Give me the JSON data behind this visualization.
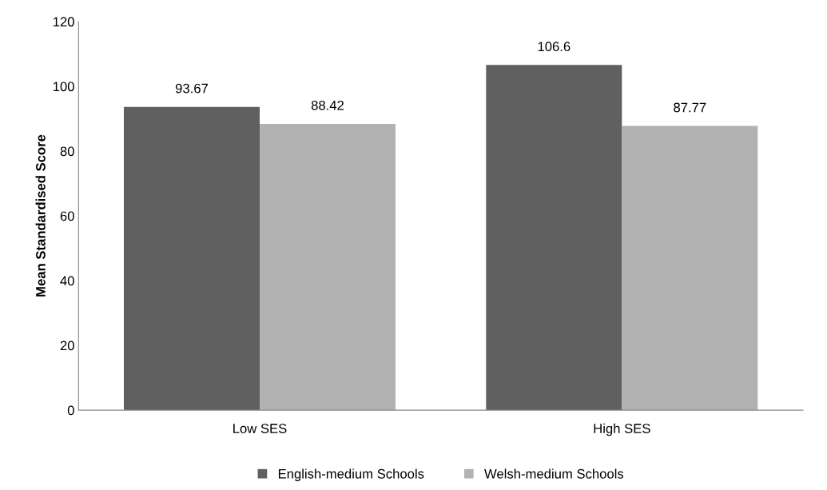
{
  "chart_data": {
    "type": "bar",
    "ylabel": "Mean Standardised Score",
    "categories": [
      "Low SES",
      "High SES"
    ],
    "series": [
      {
        "name": "English-medium Schools",
        "color": "#606060",
        "values": [
          93.67,
          106.6
        ]
      },
      {
        "name": "Welsh-medium Schools",
        "color": "#b2b2b2",
        "values": [
          88.42,
          87.77
        ]
      }
    ],
    "ylim": [
      0,
      120
    ],
    "yticks": [
      0,
      20,
      40,
      60,
      80,
      100,
      120
    ],
    "grid": false,
    "legend": "bottom",
    "data_labels": true
  }
}
